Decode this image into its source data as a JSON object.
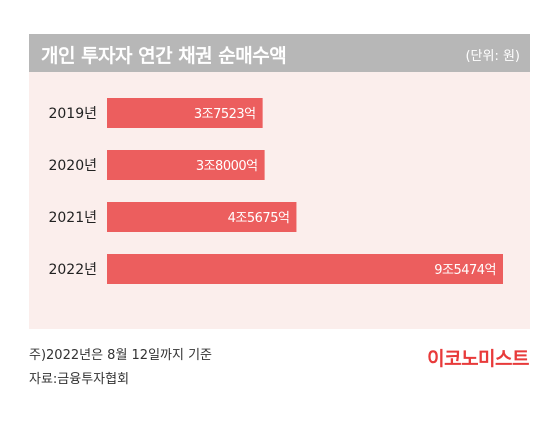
{
  "chart_data": {
    "type": "bar",
    "orientation": "horizontal",
    "title": "개인 투자자 연간 채권 순매수액",
    "unit_label": "(단위: 원)",
    "categories": [
      "2019년",
      "2020년",
      "2021년",
      "2022년"
    ],
    "values": [
      37523,
      38000,
      45675,
      95474
    ],
    "value_unit": "억 원",
    "data_labels": [
      "3조7523억",
      "3조8000억",
      "4조5675억",
      "9조5474억"
    ],
    "grid": false,
    "legend": "none",
    "colors": {
      "bar": "#ec5e5e",
      "bar_label": "#ffffff",
      "plot_background": "#fbeeec",
      "title_background": "#b7b7b7"
    }
  },
  "footer": {
    "note": "주)2022년은 8월 12일까지 기준",
    "source": "자료:금융투자협회",
    "brand": "이코노미스트",
    "brand_color": "#e83a3a"
  }
}
